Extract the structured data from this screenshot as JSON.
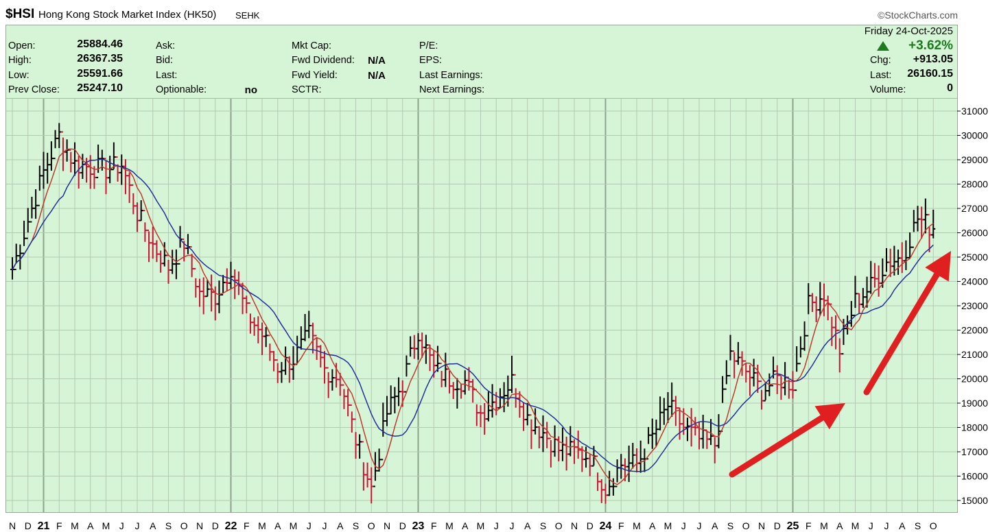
{
  "header": {
    "symbol": "$HSI",
    "name": "Hong Kong Stock Market Index (HK50)",
    "exchange": "SEHK",
    "watermark": "©StockCharts.com"
  },
  "info": {
    "left": [
      {
        "label": "Open:",
        "value": "25884.46"
      },
      {
        "label": "High:",
        "value": "26367.35"
      },
      {
        "label": "Low:",
        "value": "25591.66"
      },
      {
        "label": "Prev Close:",
        "value": "25247.10"
      }
    ],
    "mid1": [
      {
        "label": "Ask:",
        "value": ""
      },
      {
        "label": "Bid:",
        "value": ""
      },
      {
        "label": "Last:",
        "value": ""
      },
      {
        "label": "Optionable:",
        "value": "no"
      }
    ],
    "mid2": [
      {
        "label": "Mkt Cap:",
        "value": ""
      },
      {
        "label": "Fwd Dividend:",
        "value": "N/A"
      },
      {
        "label": "Fwd Yield:",
        "value": "N/A"
      },
      {
        "label": "SCTR:",
        "value": ""
      }
    ],
    "mid3": [
      {
        "label": "P/E:"
      },
      {
        "label": "EPS:"
      },
      {
        "label": "Last Earnings:"
      },
      {
        "label": "Next Earnings:"
      }
    ],
    "date": "Friday  24-Oct-2025",
    "change_pct": "+3.62%",
    "chg_label": "Chg:",
    "chg_value": "+913.05",
    "last_label": "Last:",
    "last_value": "26160.15",
    "volume_label": "Volume:",
    "volume_value": "0"
  },
  "colors": {
    "background": "#d6f5d6",
    "up_bar": "#000000",
    "down_bar": "#cc1133",
    "ma_fast": "#c0392b",
    "ma_slow": "#1f2f9a",
    "arrow": "#e02020",
    "up_triangle": "#1e7a1e"
  },
  "chart_data": {
    "type": "bar",
    "ohlc_style": "weekly price bars with two moving averages",
    "x_tick_labels": [
      "N",
      "D",
      "21",
      "F",
      "M",
      "A",
      "M",
      "J",
      "J",
      "A",
      "S",
      "O",
      "N",
      "D",
      "22",
      "F",
      "M",
      "A",
      "M",
      "J",
      "J",
      "A",
      "S",
      "O",
      "N",
      "D",
      "23",
      "F",
      "M",
      "A",
      "M",
      "J",
      "J",
      "A",
      "S",
      "O",
      "N",
      "D",
      "24",
      "F",
      "M",
      "A",
      "M",
      "J",
      "J",
      "A",
      "S",
      "O",
      "N",
      "D",
      "25",
      "F",
      "M",
      "A",
      "M",
      "J",
      "J",
      "A",
      "S",
      "O"
    ],
    "year_labels": [
      "21",
      "22",
      "23",
      "24",
      "25"
    ],
    "y_ticks": [
      15000,
      16000,
      17000,
      18000,
      19000,
      20000,
      21000,
      22000,
      23000,
      24000,
      25000,
      26000,
      27000,
      28000,
      29000,
      30000,
      31000
    ],
    "ylim": [
      14500,
      31500
    ],
    "close_series": [
      {
        "month": "Nov 2020",
        "value": 24500
      },
      {
        "month": "Dec 2020",
        "value": 26500
      },
      {
        "month": "Jan 2021",
        "value": 28500
      },
      {
        "month": "Feb 2021",
        "value": 30000
      },
      {
        "month": "Mar 2021",
        "value": 28800
      },
      {
        "month": "Apr 2021",
        "value": 28700
      },
      {
        "month": "May 2021",
        "value": 28600
      },
      {
        "month": "Jun 2021",
        "value": 28800
      },
      {
        "month": "Jul 2021",
        "value": 26800
      },
      {
        "month": "Aug 2021",
        "value": 25500
      },
      {
        "month": "Sep 2021",
        "value": 24600
      },
      {
        "month": "Oct 2021",
        "value": 25600
      },
      {
        "month": "Nov 2021",
        "value": 23500
      },
      {
        "month": "Dec 2021",
        "value": 23400
      },
      {
        "month": "Jan 2022",
        "value": 24600
      },
      {
        "month": "Feb 2022",
        "value": 22700
      },
      {
        "month": "Mar 2022",
        "value": 21800
      },
      {
        "month": "Apr 2022",
        "value": 20500
      },
      {
        "month": "May 2022",
        "value": 20800
      },
      {
        "month": "Jun 2022",
        "value": 21800
      },
      {
        "month": "Jul 2022",
        "value": 20400
      },
      {
        "month": "Aug 2022",
        "value": 20000
      },
      {
        "month": "Sep 2022",
        "value": 17500
      },
      {
        "month": "Oct 2022",
        "value": 15500
      },
      {
        "month": "Nov 2022",
        "value": 18600
      },
      {
        "month": "Dec 2022",
        "value": 19800
      },
      {
        "month": "Jan 2023",
        "value": 22000
      },
      {
        "month": "Feb 2023",
        "value": 20400
      },
      {
        "month": "Mar 2023",
        "value": 20000
      },
      {
        "month": "Apr 2023",
        "value": 19900
      },
      {
        "month": "May 2023",
        "value": 18600
      },
      {
        "month": "Jun 2023",
        "value": 19200
      },
      {
        "month": "Jul 2023",
        "value": 19900
      },
      {
        "month": "Aug 2023",
        "value": 18400
      },
      {
        "month": "Sep 2023",
        "value": 17800
      },
      {
        "month": "Oct 2023",
        "value": 17100
      },
      {
        "month": "Nov 2023",
        "value": 17000
      },
      {
        "month": "Dec 2023",
        "value": 16800
      },
      {
        "month": "Jan 2024",
        "value": 15500
      },
      {
        "month": "Feb 2024",
        "value": 16500
      },
      {
        "month": "Mar 2024",
        "value": 16500
      },
      {
        "month": "Apr 2024",
        "value": 17600
      },
      {
        "month": "May 2024",
        "value": 18900
      },
      {
        "month": "Jun 2024",
        "value": 18000
      },
      {
        "month": "Jul 2024",
        "value": 17500
      },
      {
        "month": "Aug 2024",
        "value": 17300
      },
      {
        "month": "Sep 2024",
        "value": 21000
      },
      {
        "month": "Oct 2024",
        "value": 20300
      },
      {
        "month": "Nov 2024",
        "value": 19500
      },
      {
        "month": "Dec 2024",
        "value": 20000
      },
      {
        "month": "Jan 2025",
        "value": 19800
      },
      {
        "month": "Feb 2025",
        "value": 23000
      },
      {
        "month": "Mar 2025",
        "value": 23500
      },
      {
        "month": "Apr 2025",
        "value": 21200
      },
      {
        "month": "May 2025",
        "value": 23200
      },
      {
        "month": "Jun 2025",
        "value": 23800
      },
      {
        "month": "Jul 2025",
        "value": 24800
      },
      {
        "month": "Aug 2025",
        "value": 25000
      },
      {
        "month": "Sep 2025",
        "value": 26600
      },
      {
        "month": "Oct 2025",
        "value": 26160
      }
    ],
    "annotations": [
      "arrow from Aug 2024 low to Apr 2025 low",
      "arrow from Apr 2025 up to Oct 2025"
    ]
  }
}
